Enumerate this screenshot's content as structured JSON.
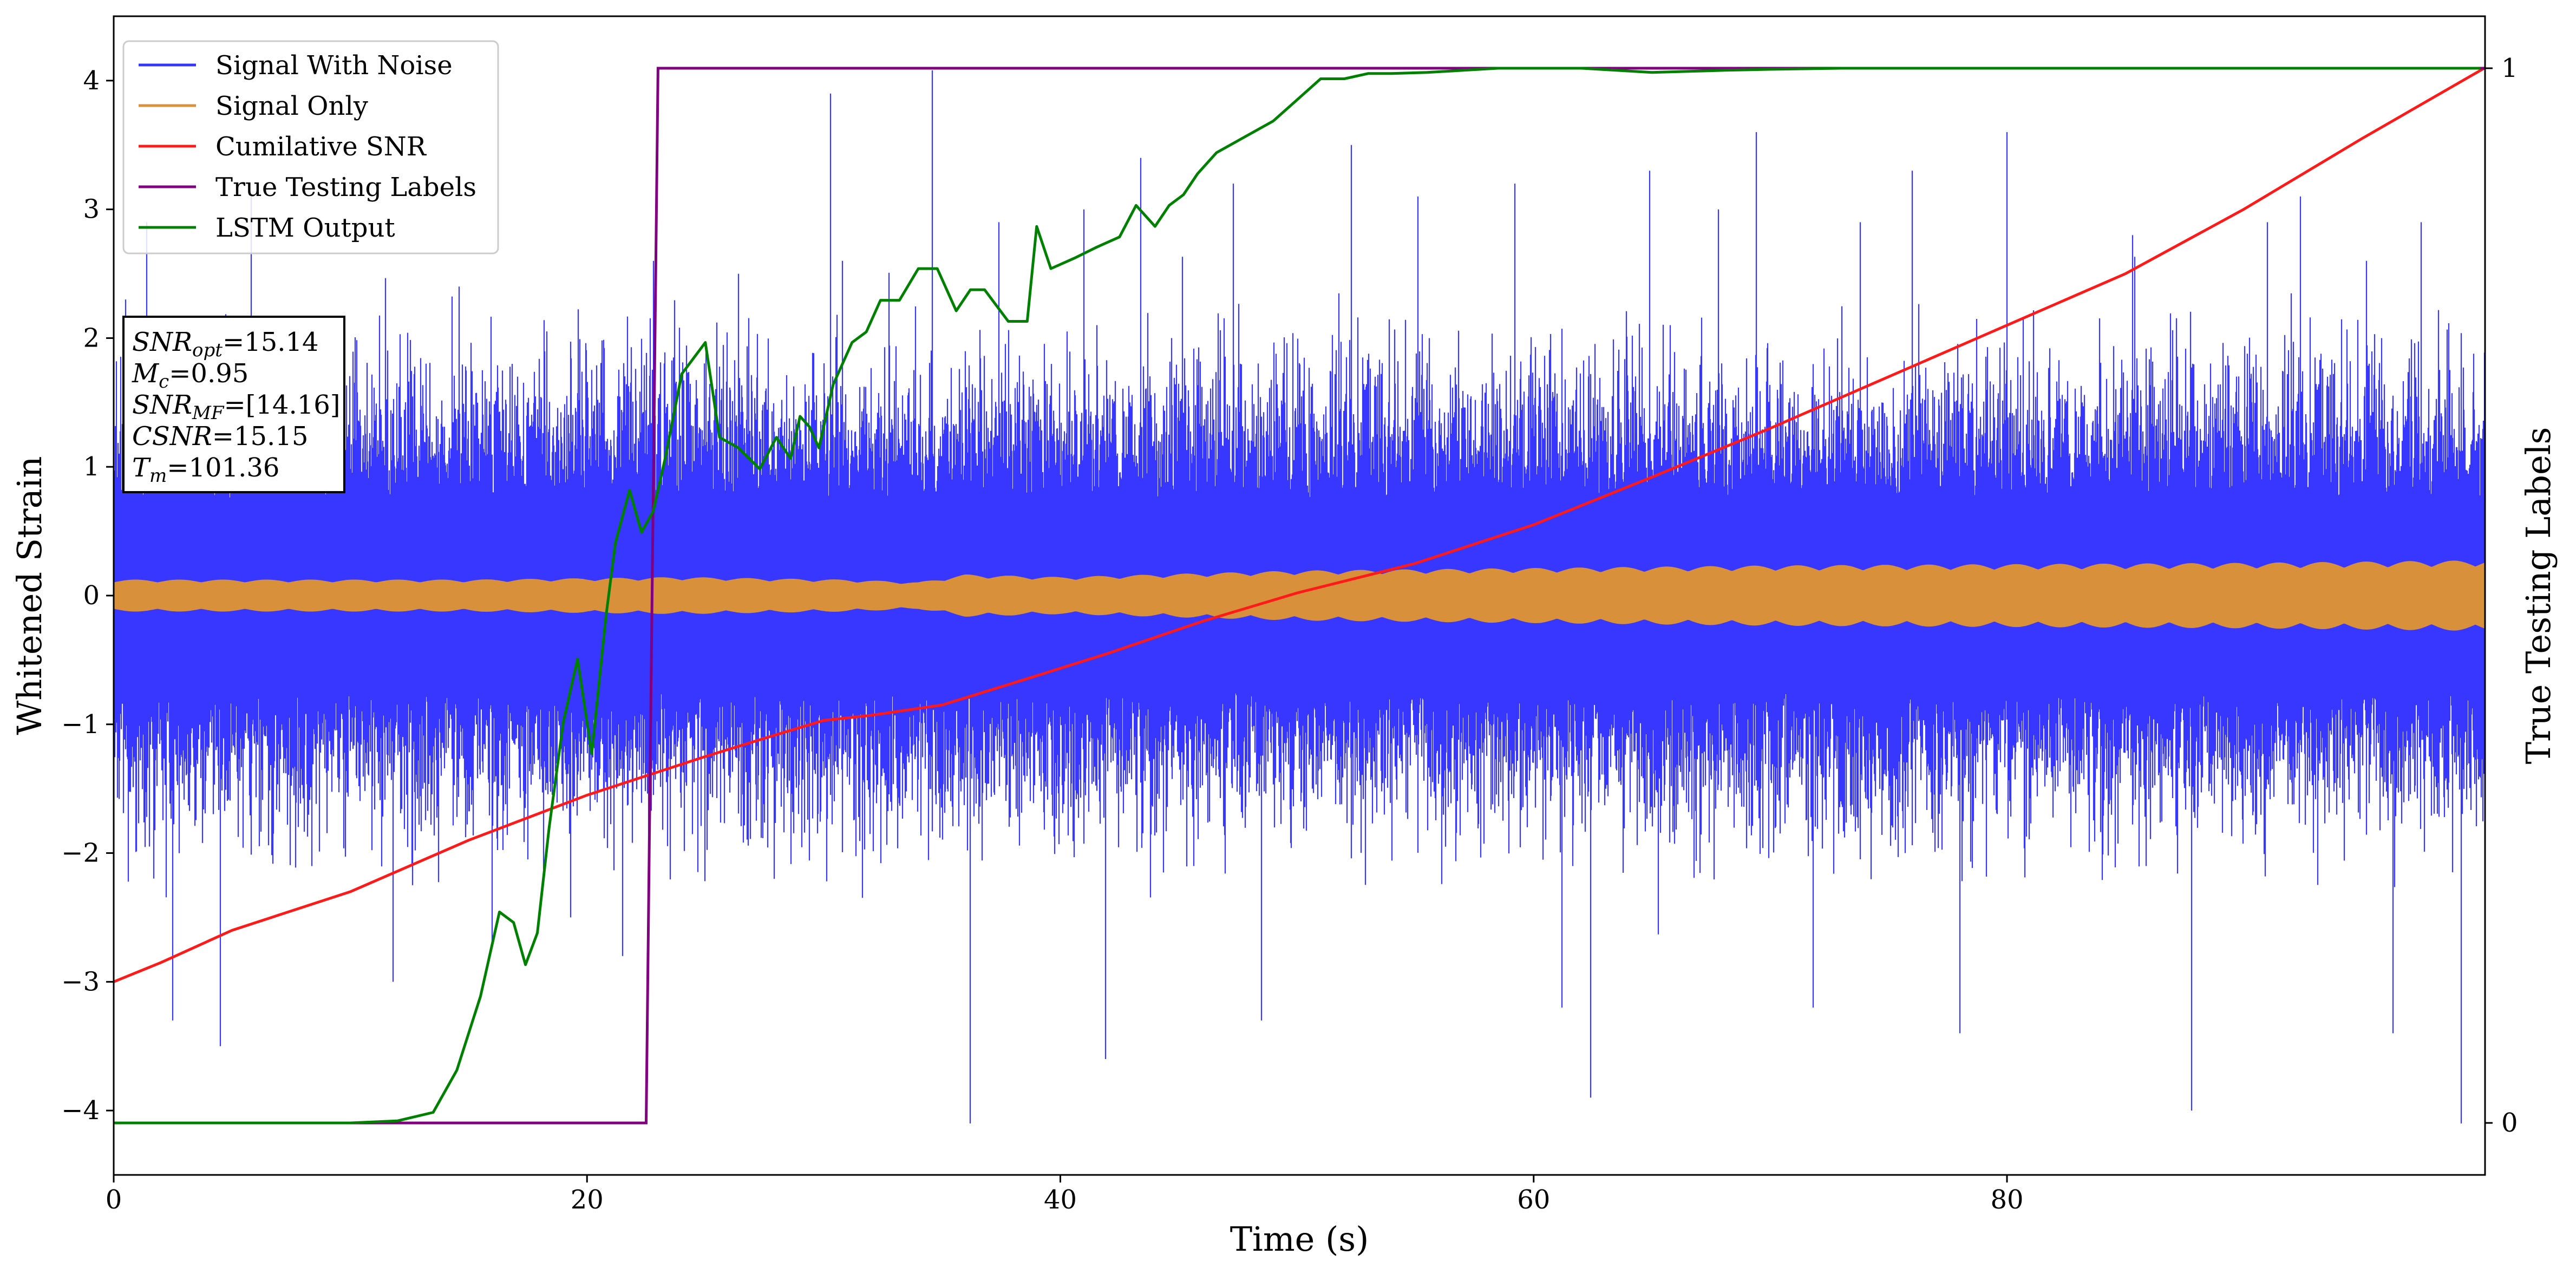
{
  "chart_data": {
    "type": "line",
    "xlabel": "Time (s)",
    "ylabel": "Whitened Strain",
    "y2label": "True Testing Labels",
    "xlim": [
      0,
      100.2
    ],
    "ylim": [
      -4.5,
      4.5
    ],
    "y2lim": [
      -0.0493,
      1.0493
    ],
    "xticks": [
      0,
      20,
      40,
      60,
      80
    ],
    "yticks": [
      -4,
      -3,
      -2,
      -1,
      0,
      1,
      2,
      3,
      4
    ],
    "y2ticks": [
      0,
      1
    ],
    "grid": false,
    "legend_position": "top-left",
    "colors": {
      "signal_with_noise": "#3333ff",
      "signal_only": "#d8913a",
      "cumulative_snr": "#ff1a1a",
      "true_labels": "#800080",
      "lstm_output": "#008000"
    },
    "series": [
      {
        "name": "Signal With Noise",
        "style": "dense noise trace",
        "x_range": [
          0,
          100.2
        ],
        "points": [
          [
            0.5,
            2.3
          ],
          [
            1.4,
            2.9
          ],
          [
            2.5,
            -3.3
          ],
          [
            4.5,
            -3.5
          ],
          [
            5.8,
            3.1
          ],
          [
            11.8,
            -3.0
          ],
          [
            14.6,
            2.4
          ],
          [
            16.0,
            -2.7
          ],
          [
            19.3,
            -2.5
          ],
          [
            21.5,
            -2.8
          ],
          [
            22.8,
            2.6
          ],
          [
            26.4,
            2.5
          ],
          [
            27.9,
            -2.2
          ],
          [
            30.3,
            3.9
          ],
          [
            30.8,
            2.6
          ],
          [
            34.6,
            4.08
          ],
          [
            36.2,
            -4.1
          ],
          [
            37.4,
            2.9
          ],
          [
            41.0,
            3.0
          ],
          [
            41.9,
            -3.6
          ],
          [
            43.4,
            3.4
          ],
          [
            47.3,
            3.2
          ],
          [
            48.5,
            -3.3
          ],
          [
            52.3,
            3.5
          ],
          [
            55.1,
            3.1
          ],
          [
            59.2,
            3.2
          ],
          [
            61.2,
            -3.2
          ],
          [
            62.4,
            -3.9
          ],
          [
            64.9,
            3.3
          ],
          [
            67.8,
            3.0
          ],
          [
            69.4,
            3.6
          ],
          [
            71.8,
            -3.2
          ],
          [
            73.8,
            2.9
          ],
          [
            76.0,
            3.3
          ],
          [
            78.0,
            -3.4
          ],
          [
            80.0,
            3.6
          ],
          [
            85.3,
            2.8
          ],
          [
            87.8,
            -4.0
          ],
          [
            91.0,
            2.9
          ],
          [
            92.4,
            3.1
          ],
          [
            95.2,
            2.6
          ],
          [
            96.3,
            -3.4
          ],
          [
            97.5,
            2.9
          ],
          [
            99.2,
            -4.1
          ]
        ]
      },
      {
        "name": "Signal Only",
        "style": "dense oscillating chirp",
        "envelope": [
          [
            0,
            0.12
          ],
          [
            15,
            0.12
          ],
          [
            24,
            0.14
          ],
          [
            31,
            0.12
          ],
          [
            34,
            0.1
          ],
          [
            36,
            0.16
          ],
          [
            40,
            0.14
          ],
          [
            44,
            0.16
          ],
          [
            50,
            0.19
          ],
          [
            55,
            0.2
          ],
          [
            60,
            0.21
          ],
          [
            70,
            0.23
          ],
          [
            80,
            0.24
          ],
          [
            90,
            0.25
          ],
          [
            100.2,
            0.27
          ]
        ]
      },
      {
        "name": "Cumilative SNR",
        "x": [
          0,
          2,
          5,
          10,
          15,
          20,
          22.5,
          25,
          28,
          30,
          32,
          35,
          38,
          42,
          46,
          50,
          55,
          60,
          65,
          70,
          75,
          80,
          85,
          90,
          95,
          100.2
        ],
        "y": [
          -3.0,
          -2.85,
          -2.6,
          -2.3,
          -1.9,
          -1.55,
          -1.4,
          -1.25,
          -1.08,
          -0.97,
          -0.93,
          -0.85,
          -0.68,
          -0.45,
          -0.2,
          0.02,
          0.25,
          0.55,
          0.92,
          1.3,
          1.7,
          2.1,
          2.5,
          3.0,
          3.55,
          4.1
        ]
      },
      {
        "name": "True Testing Labels",
        "axis": "right",
        "x": [
          0,
          22.5,
          23.0,
          100.2
        ],
        "y": [
          0,
          0,
          1,
          1
        ]
      },
      {
        "name": "LSTM Output",
        "axis": "right",
        "x": [
          0,
          10,
          12,
          13.5,
          14.5,
          15.5,
          16.3,
          16.9,
          17.4,
          17.9,
          18.4,
          19.0,
          19.6,
          20.2,
          20.8,
          21.2,
          21.8,
          22.3,
          22.8,
          23.3,
          24.0,
          25.0,
          25.6,
          26.4,
          27.3,
          28.0,
          28.6,
          29.0,
          29.4,
          29.8,
          30.4,
          31.2,
          31.8,
          32.4,
          33.2,
          34.0,
          34.8,
          35.6,
          36.2,
          36.8,
          37.8,
          38.6,
          39.0,
          39.6,
          40.6,
          41.5,
          42.5,
          43.2,
          44.0,
          44.6,
          45.2,
          45.8,
          46.6,
          47.4,
          48.2,
          49.0,
          50.0,
          51.0,
          52.0,
          53.0,
          54.0,
          55.5,
          57.0,
          58.5,
          60.0,
          62.0,
          65.0,
          68.0,
          70.0,
          73.0,
          78.0,
          85.0,
          90.0,
          95.0,
          100.0
        ],
        "y": [
          0,
          0,
          0.002,
          0.01,
          0.05,
          0.12,
          0.2,
          0.19,
          0.15,
          0.18,
          0.28,
          0.38,
          0.44,
          0.35,
          0.48,
          0.55,
          0.6,
          0.56,
          0.58,
          0.63,
          0.71,
          0.74,
          0.65,
          0.64,
          0.62,
          0.65,
          0.63,
          0.67,
          0.66,
          0.64,
          0.7,
          0.74,
          0.75,
          0.78,
          0.78,
          0.81,
          0.81,
          0.77,
          0.79,
          0.79,
          0.76,
          0.76,
          0.85,
          0.81,
          0.82,
          0.83,
          0.84,
          0.87,
          0.85,
          0.87,
          0.88,
          0.9,
          0.92,
          0.93,
          0.94,
          0.95,
          0.97,
          0.99,
          0.99,
          0.995,
          0.995,
          0.996,
          0.998,
          1.0,
          1.0,
          1.0,
          0.996,
          0.998,
          0.999,
          1.0,
          1.0,
          1.0,
          1.0,
          1.0,
          1.0
        ]
      }
    ],
    "annotation": {
      "lines": [
        {
          "symbol": "SNR",
          "sub": "opt",
          "value": "=15.14"
        },
        {
          "symbol": "M",
          "sub": "c",
          "value": "=0.95"
        },
        {
          "symbol": "SNR",
          "sub": "MF",
          "value": "=[14.16]"
        },
        {
          "symbol": "CSNR",
          "sub": "",
          "value": "=15.15"
        },
        {
          "symbol": "T",
          "sub": "m",
          "value": "=101.36"
        }
      ]
    }
  }
}
